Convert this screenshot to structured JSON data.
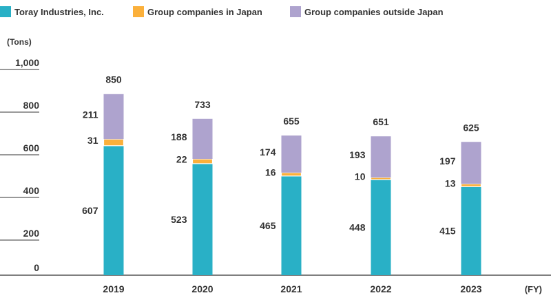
{
  "legend": [
    {
      "label": "Toray Industries, Inc.",
      "color": "#29b0c6"
    },
    {
      "label": "Group companies in Japan",
      "color": "#fbb03b"
    },
    {
      "label": "Group companies outside Japan",
      "color": "#aea3ce"
    }
  ],
  "chart_data": {
    "type": "bar",
    "stacked": true,
    "ylabel": "(Tons)",
    "xlabel": "(FY)",
    "ylim": [
      0,
      1000
    ],
    "yticks": [
      "0",
      "200",
      "400",
      "600",
      "800",
      "1,000"
    ],
    "categories": [
      "2019",
      "2020",
      "2021",
      "2022",
      "2023"
    ],
    "series": [
      {
        "name": "Toray Industries, Inc.",
        "color": "#29b0c6",
        "values": [
          607,
          523,
          465,
          448,
          415
        ]
      },
      {
        "name": "Group companies in Japan",
        "color": "#fbb03b",
        "values": [
          31,
          22,
          16,
          10,
          13
        ]
      },
      {
        "name": "Group companies outside Japan",
        "color": "#aea3ce",
        "values": [
          211,
          188,
          174,
          193,
          197
        ]
      }
    ],
    "totals": [
      850,
      733,
      655,
      651,
      625
    ]
  }
}
